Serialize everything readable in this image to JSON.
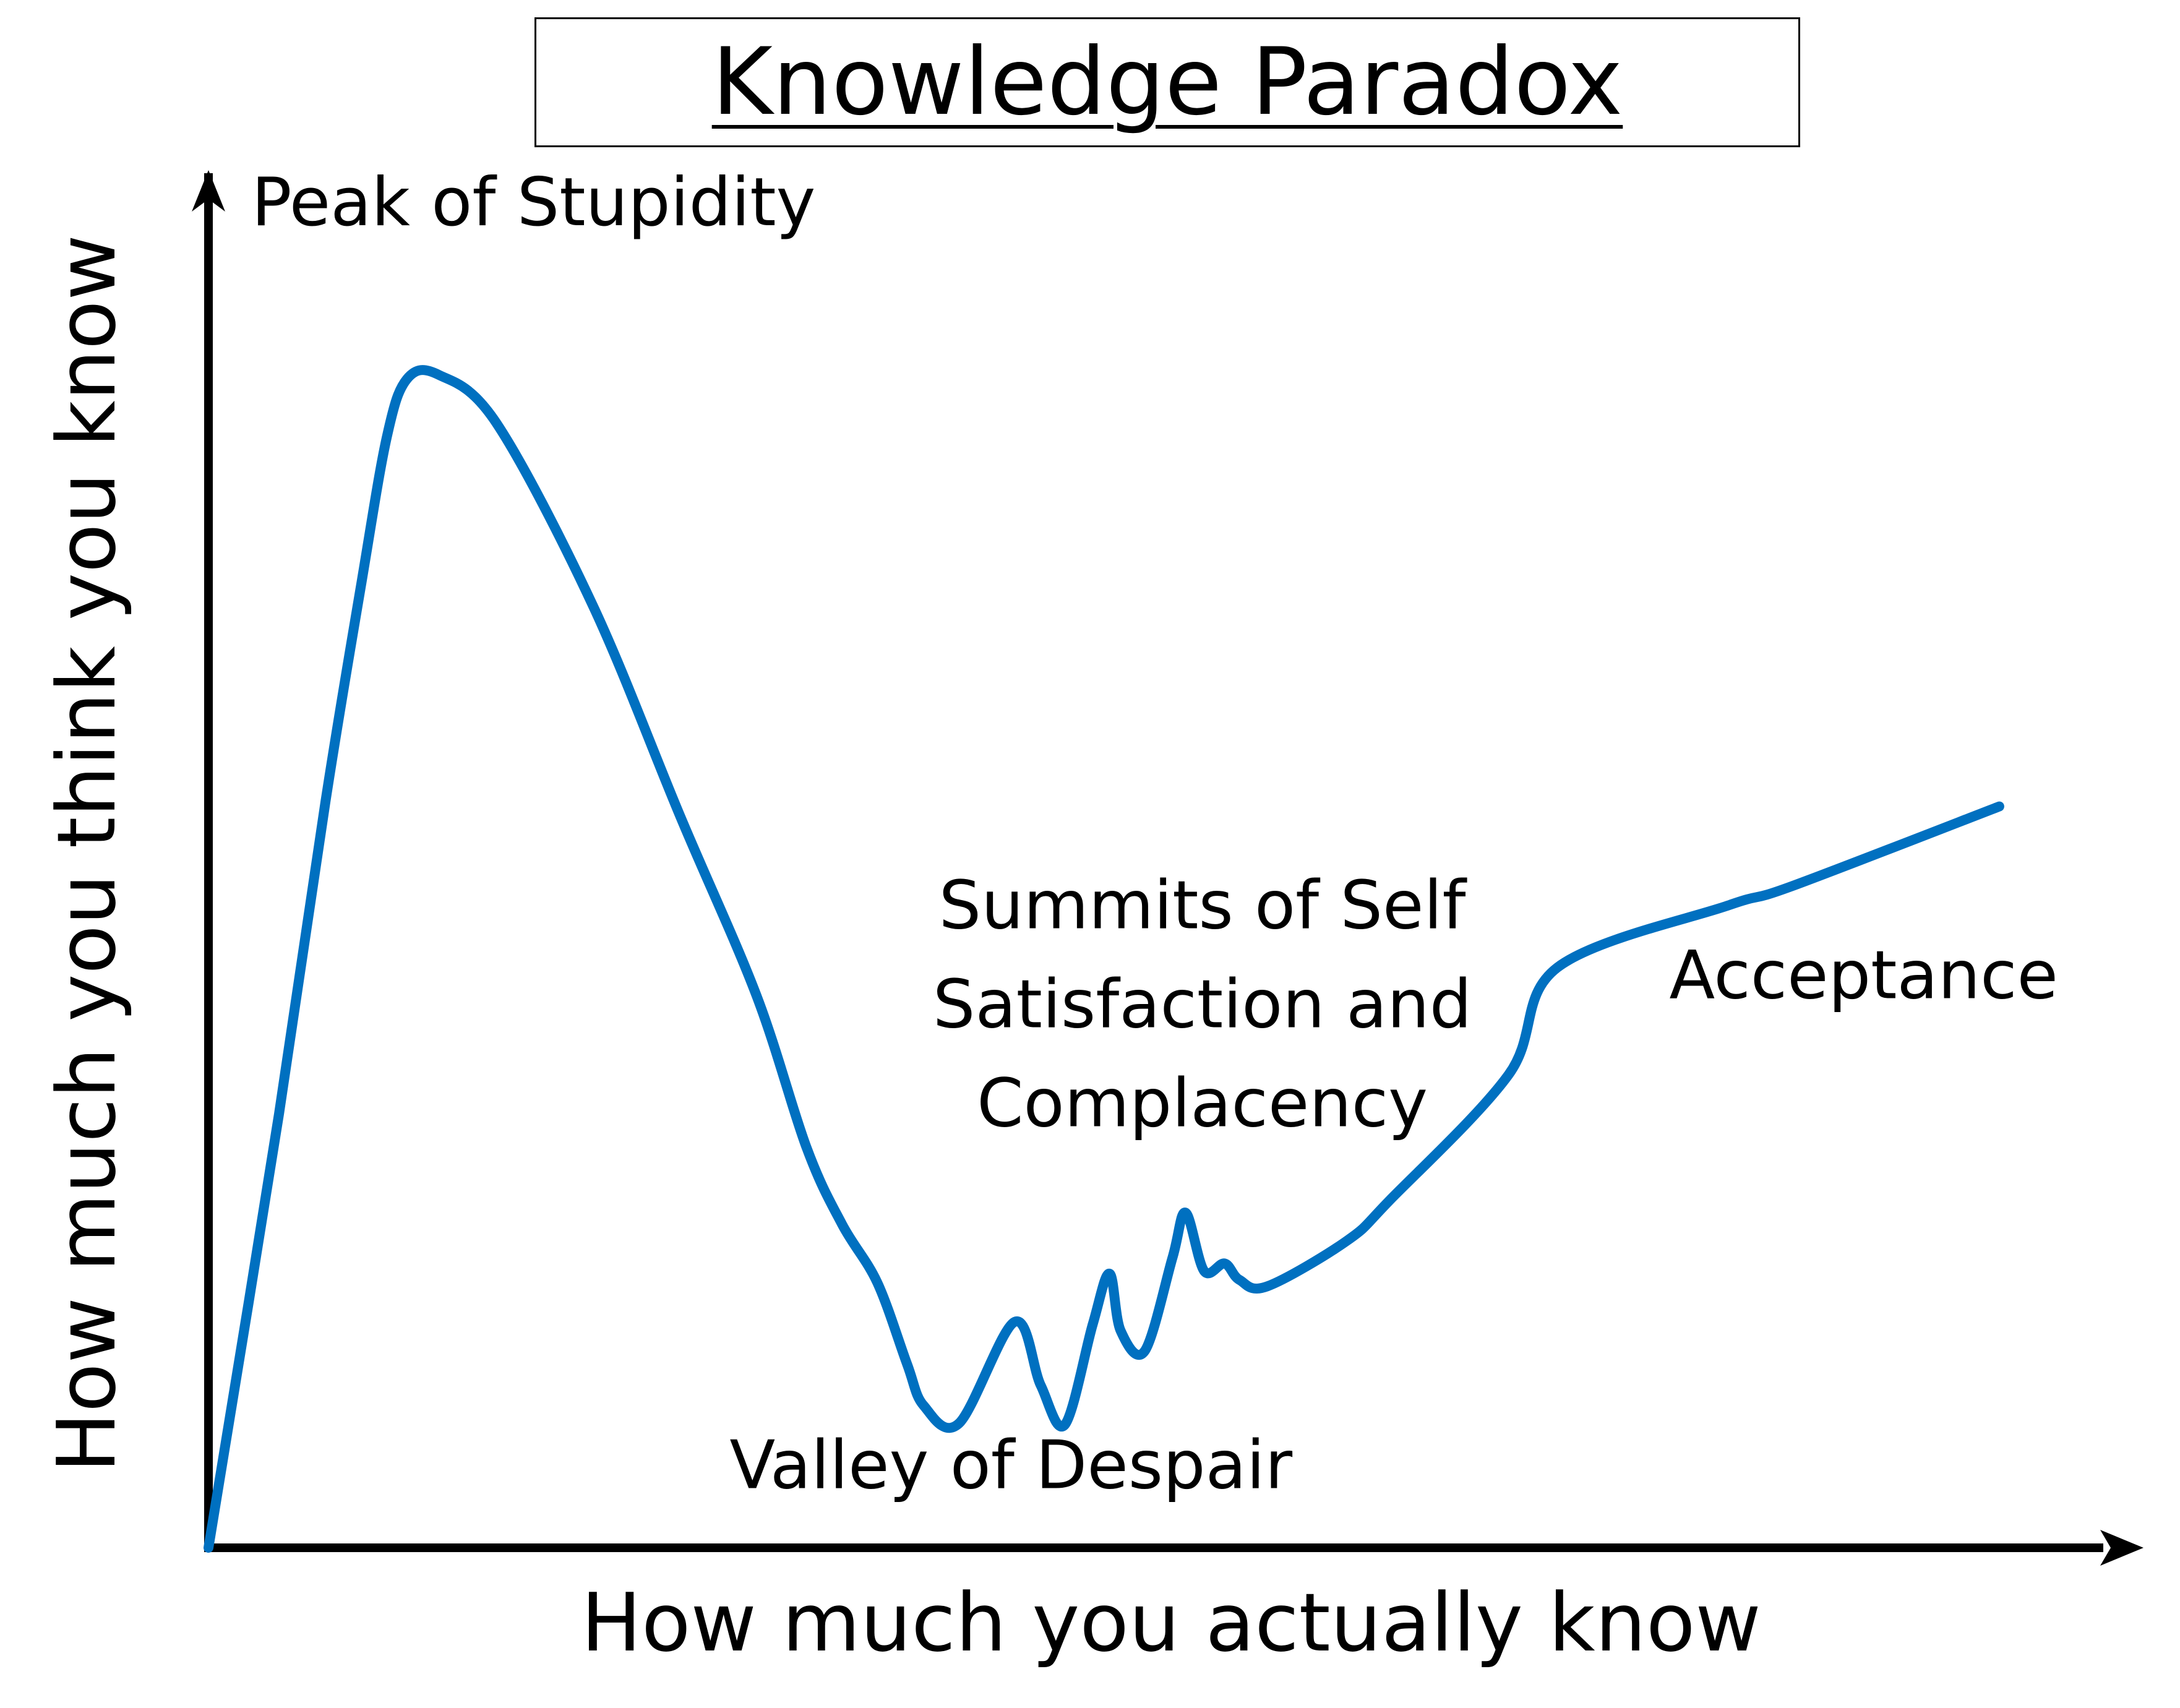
{
  "chart_data": {
    "type": "line",
    "title": "Knowledge Paradox",
    "xlabel": "How much you actually know",
    "ylabel": "How much you think you know",
    "xlim": [
      0,
      100
    ],
    "ylim": [
      0,
      100
    ],
    "grid": false,
    "line_color": "#0070C0",
    "axis_color": "#000000",
    "axis_ticks": false,
    "series": [
      {
        "x": [
          0,
          3.8,
          6.3,
          8.2,
          9.6,
          10.7,
          12.4,
          15.5,
          20.7,
          25.4,
          29.5,
          32.2,
          34.1,
          36.0,
          37.6,
          38.5,
          40.4,
          43.4,
          44.8,
          46.1,
          47.6,
          48.5,
          49.1,
          50.4,
          51.9,
          52.6,
          53.6,
          54.7,
          55.5,
          57.0,
          61.3,
          63.6,
          70.0,
          72.6,
          81.8,
          85.2,
          96.4
        ],
        "y": [
          0,
          34.2,
          58.8,
          75.7,
          87.5,
          92.1,
          92.4,
          88.6,
          74.2,
          57.6,
          43.5,
          31.5,
          25.5,
          20.9,
          14.5,
          11.2,
          9.8,
          17.8,
          12.8,
          9.7,
          17.6,
          21.6,
          17.1,
          15.5,
          22.9,
          26.4,
          21.8,
          22.4,
          21.1,
          20.6,
          24.2,
          27.4,
          37.3,
          45.7,
          50.6,
          52.1,
          58.4
        ]
      }
    ],
    "annotations": [
      {
        "text": "Peak of Stupidity",
        "x": 17.5,
        "y": 104.2
      },
      {
        "text": "Valley of Despair",
        "x": 43.2,
        "y": 4.7
      },
      {
        "text": "Summits of Self",
        "x": 53.5,
        "y": 48.8
      },
      {
        "text": "Satisfaction and",
        "x": 53.5,
        "y": 41.0
      },
      {
        "text": "Complacency",
        "x": 53.5,
        "y": 33.2
      },
      {
        "text": "Acceptance",
        "x": 89.1,
        "y": 43.3
      }
    ]
  }
}
